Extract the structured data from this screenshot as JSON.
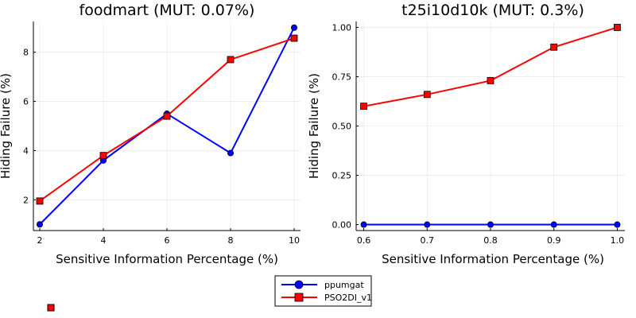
{
  "chart_data": [
    {
      "type": "line",
      "title": "foodmart (MUT: 0.07%)",
      "xlabel": "Sensitive Information Percentage (%)",
      "ylabel": "Hiding Failure (%)",
      "x": [
        2,
        4,
        6,
        8,
        10
      ],
      "xlim": [
        1.8,
        10.2
      ],
      "ylim": [
        0.75,
        9.25
      ],
      "xticks": [
        2,
        4,
        6,
        8,
        10
      ],
      "yticks": [
        2,
        4,
        6,
        8
      ],
      "xtick_labels": [
        "2",
        "4",
        "6",
        "8",
        "10"
      ],
      "ytick_labels": [
        "2",
        "4",
        "6",
        "8"
      ],
      "grid": true,
      "series": [
        {
          "name": "ppumgat",
          "color": "#0000ff",
          "marker": "circle",
          "values": [
            1.0,
            3.6,
            5.5,
            3.9,
            9.0
          ]
        },
        {
          "name": "PSO2DI_v1",
          "color": "#ff0000",
          "marker": "square",
          "values": [
            1.95,
            3.8,
            5.4,
            7.7,
            8.57
          ]
        }
      ]
    },
    {
      "type": "line",
      "title": "t25i10d10k (MUT: 0.3%)",
      "xlabel": "Sensitive Information Percentage (%)",
      "ylabel": "Hiding Failure (%)",
      "x": [
        0.6,
        0.7,
        0.8,
        0.9,
        1.0
      ],
      "xlim": [
        0.588,
        1.012
      ],
      "ylim": [
        -0.03,
        1.03
      ],
      "xticks": [
        0.6,
        0.7,
        0.8,
        0.9,
        1.0
      ],
      "yticks": [
        0,
        0.25,
        0.5,
        0.75,
        1.0
      ],
      "xtick_labels": [
        "0.6",
        "0.7",
        "0.8",
        "0.9",
        "1.0"
      ],
      "ytick_labels": [
        "0.00",
        "0.25",
        "0.50",
        "0.75",
        "1.00"
      ],
      "grid": true,
      "series": [
        {
          "name": "ppumgat",
          "color": "#0000ff",
          "marker": "circle",
          "values": [
            0.0,
            0.0,
            0.0,
            0.0,
            0.0
          ]
        },
        {
          "name": "PSO2DI_v1",
          "color": "#ff0000",
          "marker": "square",
          "values": [
            0.6,
            0.66,
            0.73,
            0.9,
            1.0
          ]
        }
      ]
    }
  ],
  "legend": {
    "placement": "bottom-center",
    "entries": [
      {
        "name": "ppumgat",
        "color": "#0000ff",
        "marker": "circle"
      },
      {
        "name": "PSO2DI_v1",
        "color": "#ff0000",
        "marker": "square"
      }
    ]
  }
}
